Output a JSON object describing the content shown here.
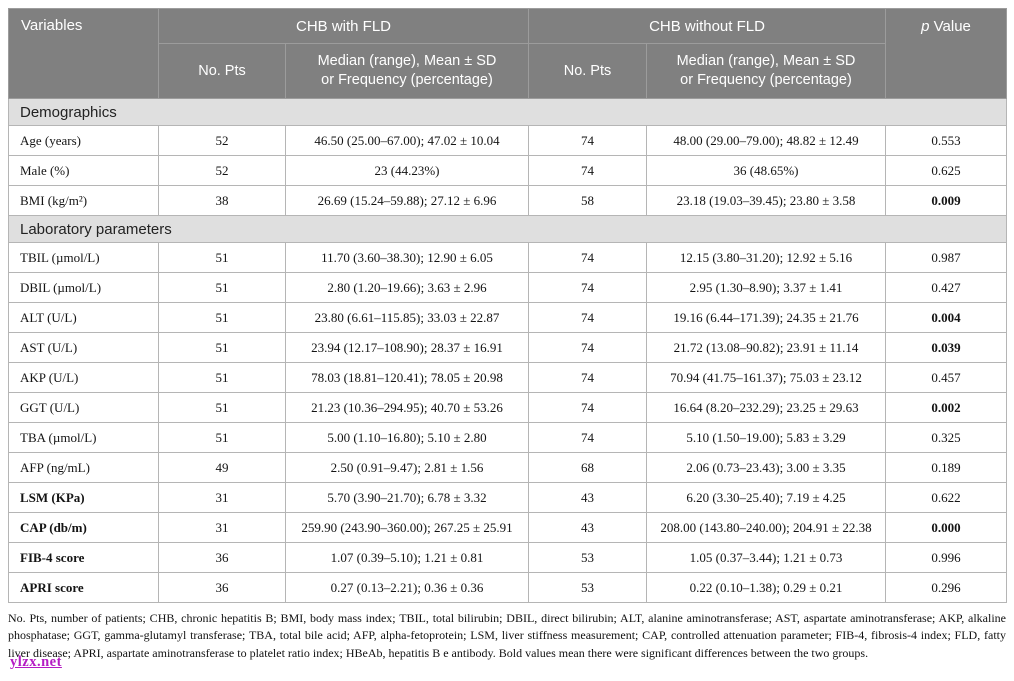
{
  "table": {
    "header": {
      "variables": "Variables",
      "group1": "CHB with FLD",
      "group2": "CHB without FLD",
      "p_italic": "p",
      "p_rest": "Value",
      "no_pts": "No. Pts",
      "median_line1": "Median (range), Mean ± SD",
      "median_line2": "or Frequency (percentage)"
    },
    "sections": [
      {
        "title": "Demographics",
        "rows": [
          {
            "label": "Age (years)",
            "label_bold": false,
            "n1": "52",
            "v1": "46.50 (25.00–67.00); 47.02 ± 10.04",
            "n2": "74",
            "v2": "48.00 (29.00–79.00); 48.82 ± 12.49",
            "p": "0.553",
            "p_bold": false
          },
          {
            "label": "Male (%)",
            "label_bold": false,
            "n1": "52",
            "v1": "23 (44.23%)",
            "n2": "74",
            "v2": "36 (48.65%)",
            "p": "0.625",
            "p_bold": false
          },
          {
            "label": "BMI (kg/m²)",
            "label_bold": false,
            "n1": "38",
            "v1": "26.69 (15.24–59.88); 27.12 ± 6.96",
            "n2": "58",
            "v2": "23.18 (19.03–39.45); 23.80 ± 3.58",
            "p": "0.009",
            "p_bold": true
          }
        ]
      },
      {
        "title": "Laboratory parameters",
        "rows": [
          {
            "label": "TBIL (µmol/L)",
            "label_bold": false,
            "n1": "51",
            "v1": "11.70 (3.60–38.30); 12.90 ± 6.05",
            "n2": "74",
            "v2": "12.15 (3.80–31.20); 12.92 ± 5.16",
            "p": "0.987",
            "p_bold": false
          },
          {
            "label": "DBIL (µmol/L)",
            "label_bold": false,
            "n1": "51",
            "v1": "2.80 (1.20–19.66); 3.63 ± 2.96",
            "n2": "74",
            "v2": "2.95 (1.30–8.90); 3.37 ± 1.41",
            "p": "0.427",
            "p_bold": false
          },
          {
            "label": "ALT (U/L)",
            "label_bold": false,
            "n1": "51",
            "v1": "23.80 (6.61–115.85); 33.03 ± 22.87",
            "n2": "74",
            "v2": "19.16 (6.44–171.39); 24.35 ± 21.76",
            "p": "0.004",
            "p_bold": true
          },
          {
            "label": "AST (U/L)",
            "label_bold": false,
            "n1": "51",
            "v1": "23.94 (12.17–108.90); 28.37 ± 16.91",
            "n2": "74",
            "v2": "21.72 (13.08–90.82); 23.91 ± 11.14",
            "p": "0.039",
            "p_bold": true
          },
          {
            "label": "AKP (U/L)",
            "label_bold": false,
            "n1": "51",
            "v1": "78.03 (18.81–120.41); 78.05 ± 20.98",
            "n2": "74",
            "v2": "70.94 (41.75–161.37); 75.03 ± 23.12",
            "p": "0.457",
            "p_bold": false
          },
          {
            "label": "GGT (U/L)",
            "label_bold": false,
            "n1": "51",
            "v1": "21.23 (10.36–294.95); 40.70 ± 53.26",
            "n2": "74",
            "v2": "16.64 (8.20–232.29); 23.25 ± 29.63",
            "p": "0.002",
            "p_bold": true
          },
          {
            "label": "TBA (µmol/L)",
            "label_bold": false,
            "n1": "51",
            "v1": "5.00 (1.10–16.80); 5.10 ± 2.80",
            "n2": "74",
            "v2": "5.10 (1.50–19.00); 5.83 ± 3.29",
            "p": "0.325",
            "p_bold": false
          },
          {
            "label": "AFP (ng/mL)",
            "label_bold": false,
            "n1": "49",
            "v1": "2.50 (0.91–9.47); 2.81 ± 1.56",
            "n2": "68",
            "v2": "2.06 (0.73–23.43); 3.00 ± 3.35",
            "p": "0.189",
            "p_bold": false
          },
          {
            "label": "LSM (KPa)",
            "label_bold": true,
            "n1": "31",
            "v1": "5.70 (3.90–21.70); 6.78 ± 3.32",
            "n2": "43",
            "v2": "6.20 (3.30–25.40); 7.19 ± 4.25",
            "p": "0.622",
            "p_bold": false
          },
          {
            "label": "CAP (db/m)",
            "label_bold": true,
            "n1": "31",
            "v1": "259.90 (243.90–360.00); 267.25 ± 25.91",
            "n2": "43",
            "v2": "208.00 (143.80–240.00); 204.91 ± 22.38",
            "p": "0.000",
            "p_bold": true
          },
          {
            "label": "FIB-4 score",
            "label_bold": true,
            "n1": "36",
            "v1": "1.07 (0.39–5.10); 1.21 ± 0.81",
            "n2": "53",
            "v2": "1.05 (0.37–3.44); 1.21 ± 0.73",
            "p": "0.996",
            "p_bold": false
          },
          {
            "label": "APRI score",
            "label_bold": true,
            "n1": "36",
            "v1": "0.27 (0.13–2.21); 0.36 ± 0.36",
            "n2": "53",
            "v2": "0.22 (0.10–1.38); 0.29 ± 0.21",
            "p": "0.296",
            "p_bold": false
          }
        ]
      }
    ]
  },
  "footnote": "No. Pts, number of patients; CHB, chronic hepatitis B; BMI, body mass index; TBIL, total bilirubin; DBIL, direct bilirubin; ALT, alanine aminotransferase; AST, aspartate aminotransferase; AKP, alkaline phosphatase; GGT, gamma-glutamyl transferase; TBA, total bile acid; AFP, alpha-fetoprotein; LSM, liver stiffness measurement; CAP, controlled attenuation parameter; FIB-4, fibrosis-4 index; FLD, fatty liver disease; APRI, aspartate aminotransferase to platelet ratio index; HBeAb, hepatitis B e antibody. Bold values mean there were significant differences between the two groups.",
  "watermark": "ylzx.net",
  "colors": {
    "header_bg": "#808080",
    "header_divider": "#9c9c9c",
    "section_bg": "#dfdfdf",
    "body_border": "#b5b5b5",
    "watermark": "#b51bc4"
  }
}
